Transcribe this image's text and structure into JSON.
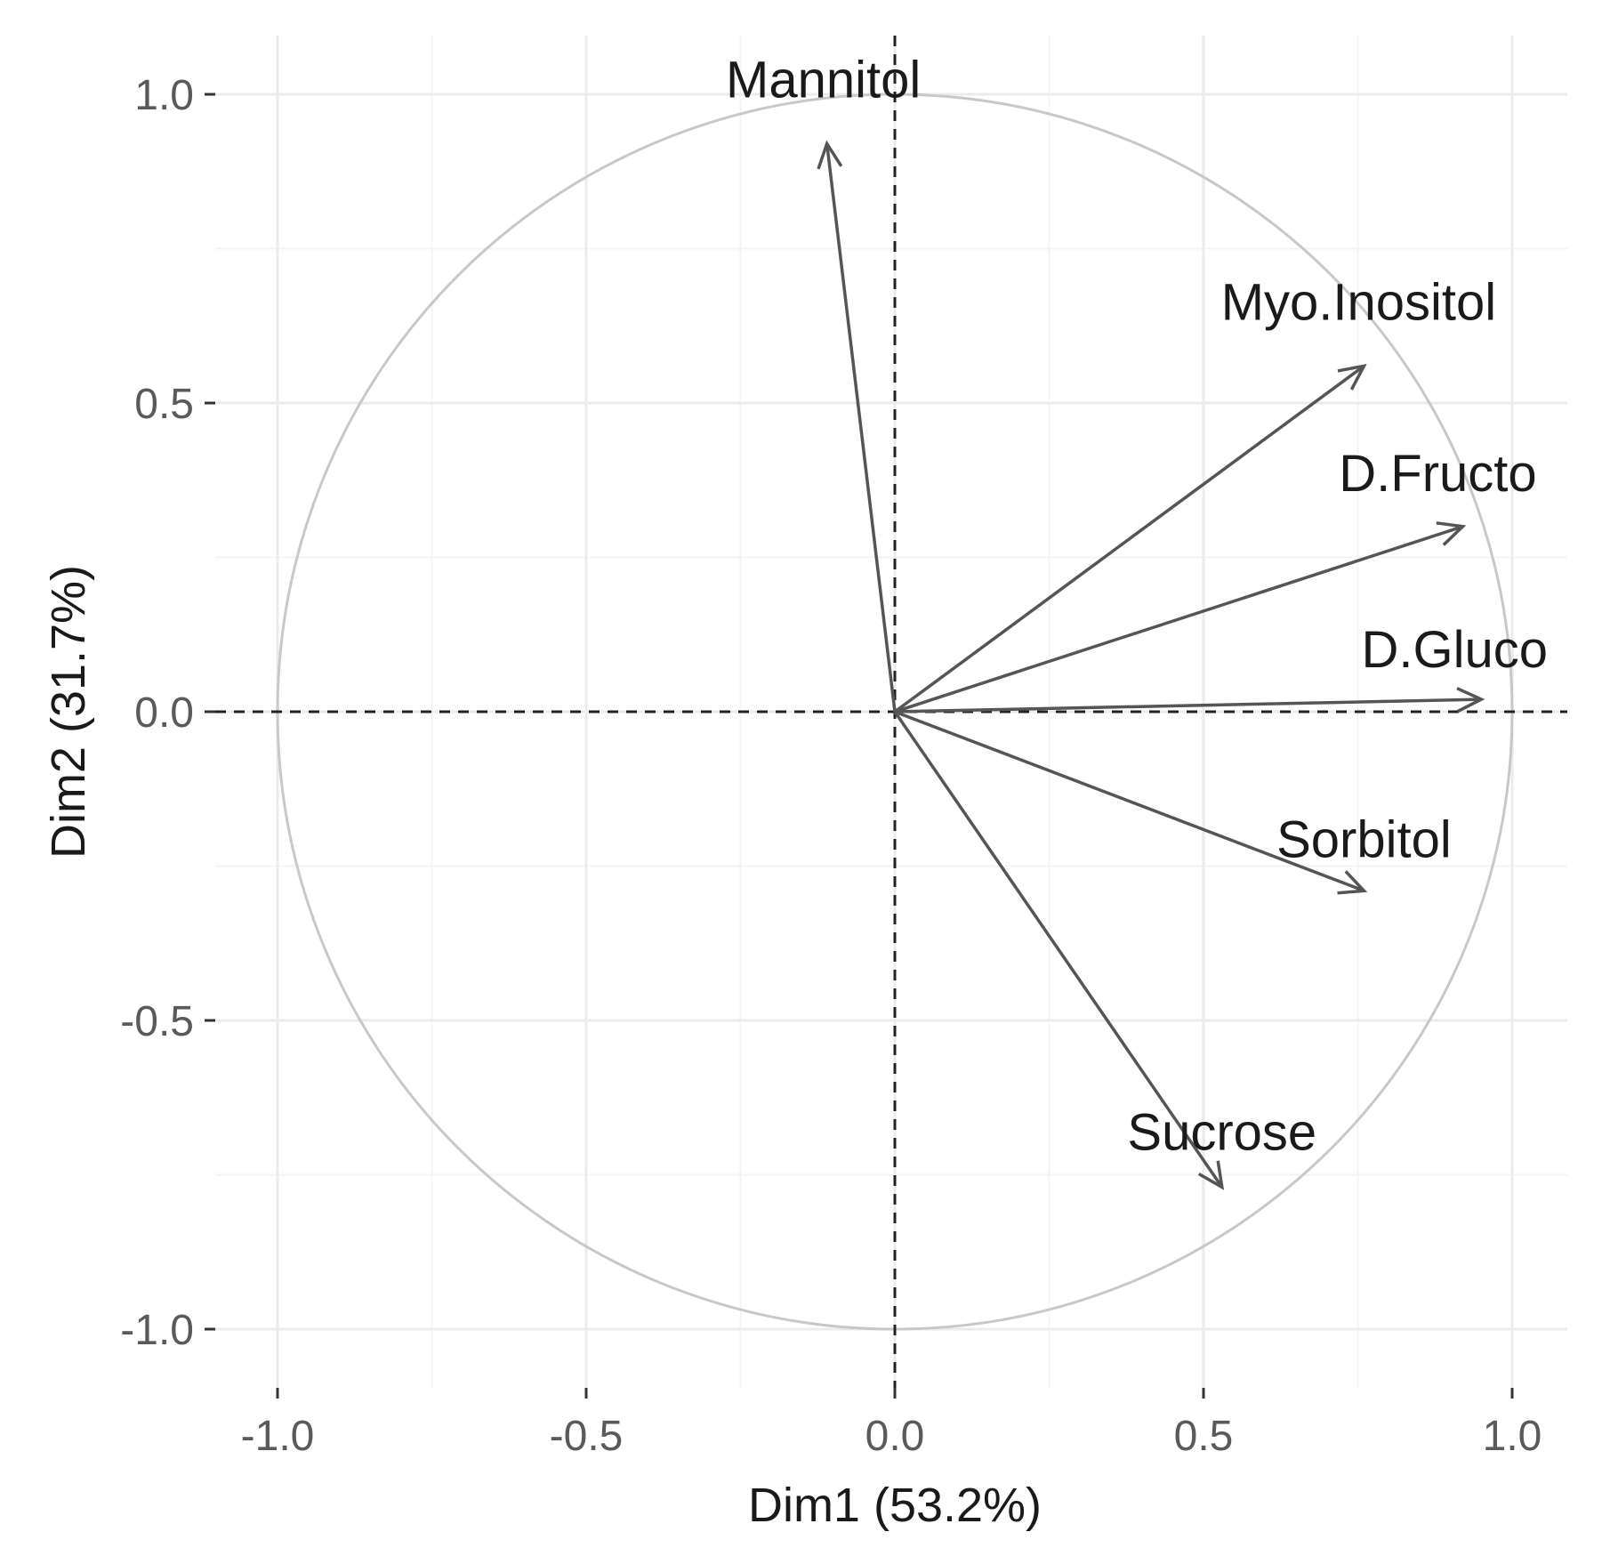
{
  "chart_data": {
    "type": "scatter",
    "subtype": "pca-variable-correlation-circle",
    "title": "",
    "xlabel": "Dim1 (53.2%)",
    "ylabel": "Dim2 (31.7%)",
    "xlim": [
      -1.0,
      1.0
    ],
    "ylim": [
      -1.0,
      1.0
    ],
    "x_ticks": [
      "-1.0",
      "-0.5",
      "0.0",
      "0.5",
      "1.0"
    ],
    "y_ticks": [
      "1.0",
      "0.5",
      "0.0",
      "-0.5",
      "-1.0"
    ],
    "grid": true,
    "unit_circle": true,
    "variables": [
      {
        "name": "Mannitol",
        "x": -0.11,
        "y": 0.92
      },
      {
        "name": "Myo.Inositol",
        "x": 0.76,
        "y": 0.56
      },
      {
        "name": "D.Fructo",
        "x": 0.92,
        "y": 0.3
      },
      {
        "name": "D.Gluco",
        "x": 0.95,
        "y": 0.02
      },
      {
        "name": "Sorbitol",
        "x": 0.76,
        "y": -0.29
      },
      {
        "name": "Sucrose",
        "x": 0.53,
        "y": -0.77
      }
    ]
  }
}
